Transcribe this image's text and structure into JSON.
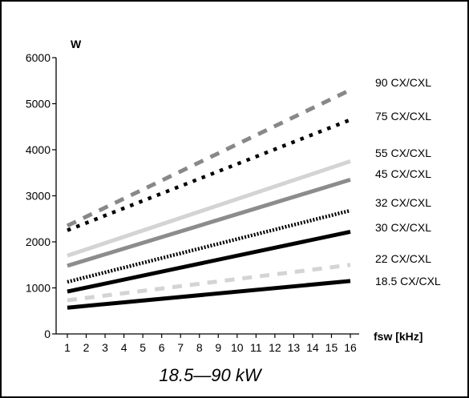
{
  "chart_data": {
    "type": "line",
    "caption": "18.5—90 kW",
    "ylabel": "W",
    "xlabel": "fsw [kHz]",
    "ylim": [
      0,
      6000
    ],
    "yticks": [
      0,
      1000,
      2000,
      3000,
      4000,
      5000,
      6000
    ],
    "xlim": [
      1,
      16
    ],
    "xticks": [
      1,
      2,
      3,
      4,
      5,
      6,
      7,
      8,
      9,
      10,
      11,
      12,
      13,
      14,
      15,
      16
    ],
    "grid": false,
    "legend_position": "right, labels beside line ends",
    "series": [
      {
        "name": "90 CX/CXL",
        "x": [
          1,
          16
        ],
        "y": [
          2350,
          5300
        ],
        "color": "#888888",
        "style": "dash"
      },
      {
        "name": "75 CX/CXL",
        "x": [
          1,
          16
        ],
        "y": [
          2250,
          4650
        ],
        "color": "#000000",
        "style": "dot"
      },
      {
        "name": "55 CX/CXL",
        "x": [
          1,
          16
        ],
        "y": [
          1700,
          3750
        ],
        "color": "#d4d4d4",
        "style": "solid"
      },
      {
        "name": "45 CX/CXL",
        "x": [
          1,
          16
        ],
        "y": [
          1480,
          3350
        ],
        "color": "#8c8c8c",
        "style": "solid"
      },
      {
        "name": "32 CX/CXL",
        "x": [
          1,
          16
        ],
        "y": [
          1130,
          2680
        ],
        "color": "#000000",
        "style": "fine-dot"
      },
      {
        "name": "30 CX/CXL",
        "x": [
          1,
          16
        ],
        "y": [
          920,
          2220
        ],
        "color": "#000000",
        "style": "solid"
      },
      {
        "name": "22 CX/CXL",
        "x": [
          1,
          16
        ],
        "y": [
          730,
          1500
        ],
        "color": "#d4d4d4",
        "style": "dash"
      },
      {
        "name": "18.5 CX/CXL",
        "x": [
          1,
          16
        ],
        "y": [
          570,
          1150
        ],
        "color": "#000000",
        "style": "solid"
      }
    ]
  }
}
